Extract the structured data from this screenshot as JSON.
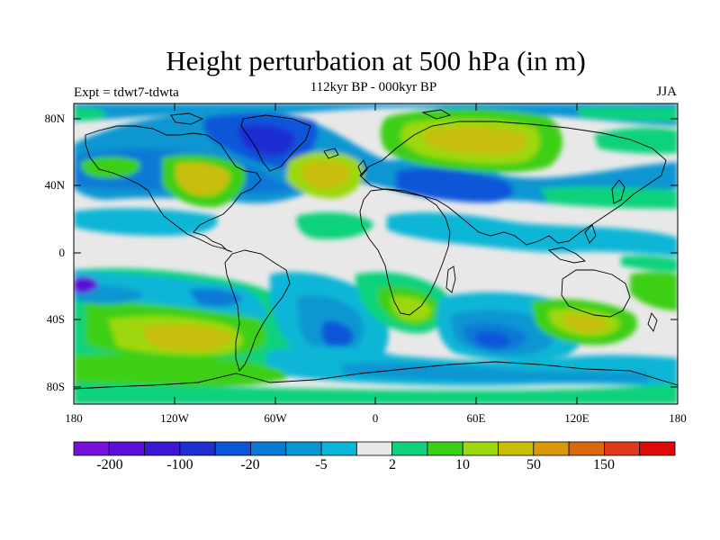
{
  "title": "Height perturbation at 500 hPa (in m)",
  "subtitle": "112kyr BP - 000kyr BP",
  "experiment": "Expt = tdwt7-tdwta",
  "season": "JJA",
  "lat_labels": [
    "80N",
    "40N",
    "0",
    "40S",
    "80S"
  ],
  "lon_labels": [
    "180",
    "120W",
    "60W",
    "0",
    "60E",
    "120E",
    "180"
  ],
  "colorbar": {
    "labels": [
      "-200",
      "-100",
      "-20",
      "-5",
      "2",
      "10",
      "50",
      "150"
    ],
    "colors": [
      "#7410d8",
      "#5a0fd8",
      "#3c18d6",
      "#1f2fd2",
      "#0b56d8",
      "#0a79d6",
      "#0a96d2",
      "#08b6d6",
      "#e8e8e8",
      "#10d27c",
      "#3ccf18",
      "#9cd80e",
      "#c8be08",
      "#d8980a",
      "#d8680a",
      "#e0381a",
      "#e00808"
    ]
  },
  "colors": {
    "neutral": "#e8e8e8",
    "coast": "#000000"
  }
}
